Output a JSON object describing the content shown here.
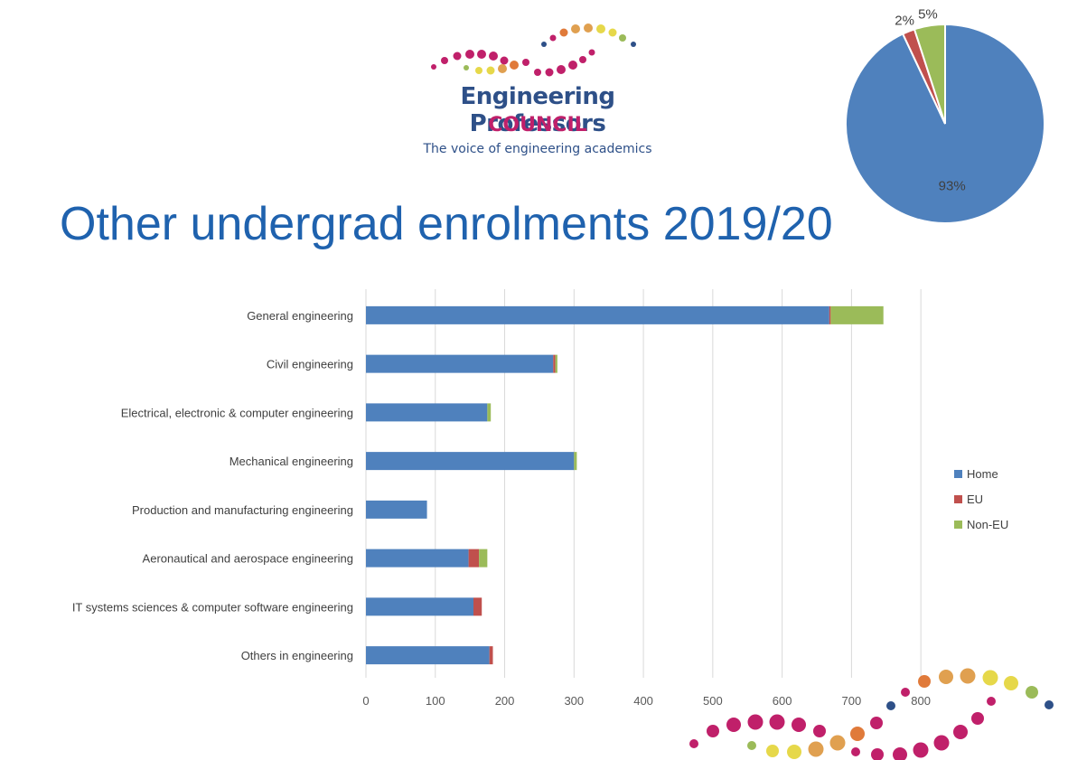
{
  "logo": {
    "line1": "Engineering Professors",
    "line2": "COUNCIL",
    "line3": "The voice of engineering academics"
  },
  "title": "Other undergrad enrolments 2019/20",
  "colors": {
    "home": "#4f81bd",
    "eu": "#c0504d",
    "non_eu": "#9bbb59"
  },
  "chart_data": [
    {
      "type": "pie",
      "labels": [
        "Home",
        "EU",
        "Non-EU"
      ],
      "values": [
        93,
        2,
        5
      ],
      "data_labels": [
        "93%",
        "2%",
        "5%"
      ]
    },
    {
      "type": "bar",
      "orientation": "horizontal",
      "stacked": true,
      "categories": [
        "General engineering",
        "Civil engineering",
        "Electrical, electronic & computer engineering",
        "Mechanical engineering",
        "Production and manufacturing engineering",
        "Aeronautical and aerospace engineering",
        "IT systems sciences & computer software engineering",
        "Others in engineering"
      ],
      "series": [
        {
          "name": "Home",
          "values": [
            668,
            270,
            175,
            300,
            88,
            148,
            155,
            178
          ]
        },
        {
          "name": "EU",
          "values": [
            2,
            3,
            0,
            0,
            0,
            15,
            12,
            5
          ]
        },
        {
          "name": "Non-EU",
          "values": [
            76,
            3,
            5,
            4,
            0,
            12,
            0,
            0
          ]
        }
      ],
      "xlim": [
        0,
        800
      ],
      "xticks": [
        0,
        100,
        200,
        300,
        400,
        500,
        600,
        700,
        800
      ],
      "grid": true,
      "legend_position": "right"
    }
  ]
}
